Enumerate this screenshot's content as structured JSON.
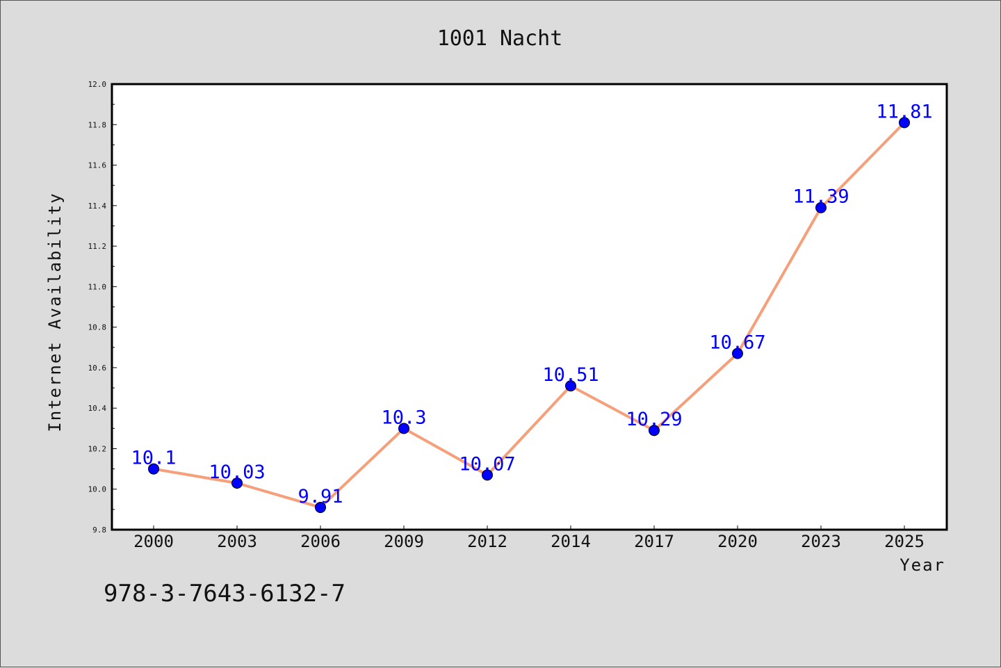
{
  "chart_data": {
    "type": "line",
    "title": "1001 Nacht",
    "xlabel": "Year",
    "ylabel": "Internet Availability",
    "categories": [
      "2000",
      "2003",
      "2006",
      "2009",
      "2012",
      "2014",
      "2017",
      "2020",
      "2023",
      "2025"
    ],
    "series": [
      {
        "values": [
          10.1,
          10.03,
          9.91,
          10.3,
          10.07,
          10.51,
          10.29,
          10.67,
          11.39,
          11.81
        ]
      }
    ],
    "data_labels": [
      "10.1",
      "10.03",
      "9.91",
      "10.3",
      "10.07",
      "10.51",
      "10.29",
      "10.67",
      "11.39",
      "11.81"
    ],
    "ylim": [
      9.8,
      12.0
    ],
    "y_ticks": [
      "9.8",
      "10.0",
      "10.2",
      "10.4",
      "10.6",
      "10.8",
      "11.0",
      "11.2",
      "11.4",
      "11.6",
      "11.8",
      "12.0"
    ],
    "grid": false,
    "legend": "none",
    "line_color": "#f5a07a",
    "marker_color": "#0000ff",
    "label_color": "#0000ff",
    "background": "#dcdcdc",
    "plot_background": "#ffffff"
  },
  "annotation": "978-3-7643-6132-7"
}
